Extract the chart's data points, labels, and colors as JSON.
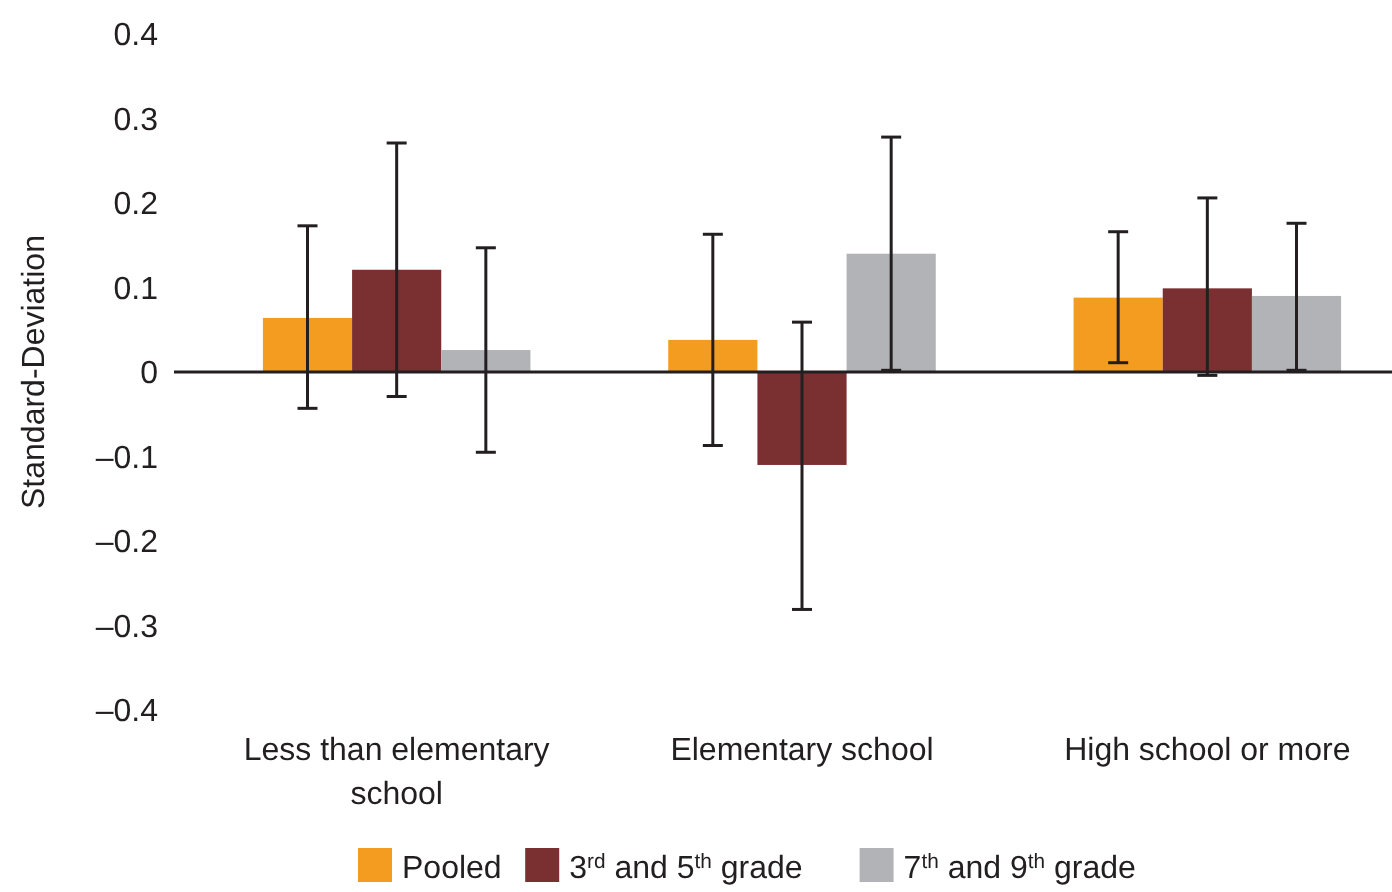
{
  "chart_data": {
    "type": "bar",
    "ylabel": "Standard-Deviation",
    "categories": [
      "Less than elementary school",
      "Elementary school",
      "High school or more"
    ],
    "series": [
      {
        "name": "Pooled",
        "color": "#f39c1f",
        "values": [
          0.064,
          0.038,
          0.088
        ],
        "errors": [
          [
            -0.043,
            0.173
          ],
          [
            -0.087,
            0.163
          ],
          [
            0.011,
            0.166
          ]
        ]
      },
      {
        "name": "3$^{rd}$ and 5$^{th}$ grade",
        "color": "#7a3030",
        "values": [
          0.121,
          -0.11,
          0.099
        ],
        "errors": [
          [
            -0.029,
            0.271
          ],
          [
            -0.281,
            0.059
          ],
          [
            -0.004,
            0.206
          ]
        ]
      },
      {
        "name": "7$^{th}$ and 9$^{th}$ grade",
        "color": "#b2b3b6",
        "values": [
          0.026,
          0.14,
          0.09
        ],
        "errors": [
          [
            -0.095,
            0.147
          ],
          [
            0.002,
            0.278
          ],
          [
            0.002,
            0.176
          ]
        ]
      }
    ],
    "ylim": [
      -0.4,
      0.4
    ],
    "yticks": [
      {
        "value": -0.4,
        "label": "–0.4"
      },
      {
        "value": -0.3,
        "label": "–0.3"
      },
      {
        "value": -0.2,
        "label": "–0.2"
      },
      {
        "value": -0.1,
        "label": "–0.1"
      },
      0,
      0.1,
      0.2,
      0.3,
      0.4
    ],
    "legend": "bottom"
  }
}
